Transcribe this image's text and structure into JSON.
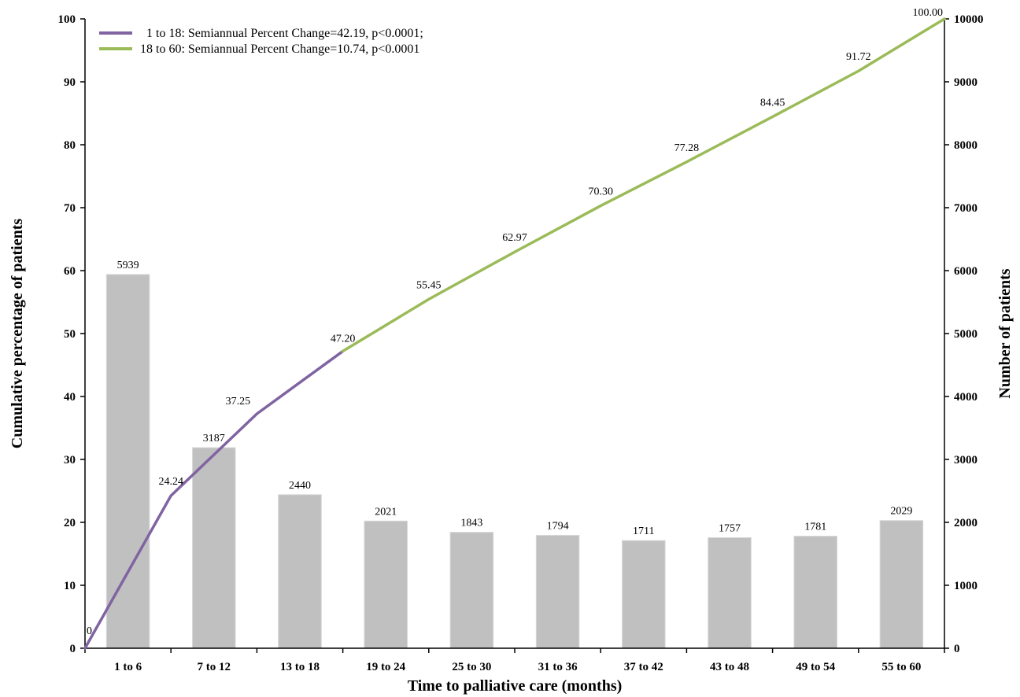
{
  "chart_data": {
    "type": "bar",
    "categories": [
      "1 to 6",
      "7 to 12",
      "13 to 18",
      "19 to 24",
      "25 to 30",
      "31 to 36",
      "37 to 42",
      "43 to 48",
      "49 to 54",
      "55 to 60"
    ],
    "bar_values": [
      5939,
      3187,
      2440,
      2021,
      1843,
      1794,
      1711,
      1757,
      1781,
      2029
    ],
    "bar_labels": [
      "5939",
      "3187",
      "2440",
      "2021",
      "1843",
      "1794",
      "1711",
      "1757",
      "1781",
      "2029"
    ],
    "bar_color": "#c0c0c0",
    "line_series": [
      {
        "name": "1 to 18: Semiannual Percent Change=42.19, p<0.0001;",
        "color": "#8064a2",
        "x": [
          0,
          6,
          12,
          18
        ],
        "y": [
          0,
          24.24,
          37.25,
          47.2
        ],
        "labels": [
          "0",
          "24.24",
          "37.25",
          "47.20"
        ]
      },
      {
        "name": "18 to 60: Semiannual Percent Change=10.74, p<0.0001",
        "color": "#9bbb59",
        "x": [
          18,
          24,
          30,
          36,
          42,
          48,
          54,
          60
        ],
        "y": [
          47.2,
          55.45,
          62.97,
          70.3,
          77.28,
          84.45,
          91.72,
          100.0
        ],
        "labels": [
          null,
          "55.45",
          "62.97",
          "70.30",
          "77.28",
          "84.45",
          "91.72",
          "100.00"
        ]
      }
    ],
    "xlabel": "Time to palliative care (months)",
    "ylabel": "Cumulative percentage of patients",
    "y2label": "Number of patients",
    "ylim": [
      0,
      100
    ],
    "y2lim": [
      0,
      10000
    ],
    "yticks": [
      "0",
      "10",
      "20",
      "30",
      "40",
      "50",
      "60",
      "70",
      "80",
      "90",
      "100"
    ],
    "y2ticks": [
      "0",
      "1000",
      "2000",
      "3000",
      "4000",
      "5000",
      "6000",
      "7000",
      "8000",
      "9000",
      "10000"
    ],
    "grid": false,
    "legend_position": "top-left"
  }
}
